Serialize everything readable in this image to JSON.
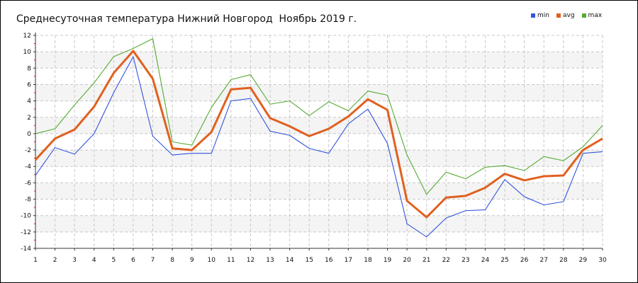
{
  "title": "Среднесуточная температура Нижний Новгород  Ноябрь 2019 г.",
  "chart_data": {
    "type": "line",
    "title": "Среднесуточная температура Нижний Новгород  Ноябрь 2019 г.",
    "xlabel": "",
    "ylabel": "",
    "x": [
      1,
      2,
      3,
      4,
      5,
      6,
      7,
      8,
      9,
      10,
      11,
      12,
      13,
      14,
      15,
      16,
      17,
      18,
      19,
      20,
      21,
      22,
      23,
      24,
      25,
      26,
      27,
      28,
      29,
      30
    ],
    "xlim": [
      1,
      30
    ],
    "ylim": [
      -14,
      12
    ],
    "yticks": [
      -14,
      -12,
      -10,
      -8,
      -6,
      -4,
      -2,
      0,
      2,
      4,
      6,
      8,
      10,
      12
    ],
    "grid": true,
    "legend_position": "top-right",
    "series": [
      {
        "name": "min",
        "color": "#3355dd",
        "values": [
          -5.1,
          -1.7,
          -2.5,
          0.0,
          5.0,
          9.4,
          -0.3,
          -2.6,
          -2.4,
          -2.4,
          4.0,
          4.3,
          0.3,
          -0.2,
          -1.8,
          -2.4,
          1.2,
          3.0,
          -1.2,
          -11.0,
          -12.6,
          -10.3,
          -9.4,
          -9.3,
          -5.6,
          -7.7,
          -8.7,
          -8.3,
          -2.4,
          -2.2
        ]
      },
      {
        "name": "avg",
        "color": "#e06020",
        "values": [
          -3.2,
          -0.6,
          0.5,
          3.3,
          7.4,
          10.1,
          6.7,
          -1.8,
          -2.0,
          0.2,
          5.4,
          5.6,
          1.9,
          0.9,
          -0.3,
          0.6,
          2.1,
          4.2,
          2.9,
          -8.2,
          -10.2,
          -7.8,
          -7.6,
          -6.6,
          -4.9,
          -5.7,
          -5.2,
          -5.1,
          -2.0,
          -0.6
        ]
      },
      {
        "name": "max",
        "color": "#55aa33",
        "values": [
          0.0,
          0.6,
          3.5,
          6.2,
          9.4,
          10.4,
          11.6,
          -1.0,
          -1.4,
          3.2,
          6.6,
          7.2,
          3.6,
          4.0,
          2.2,
          3.9,
          2.8,
          5.2,
          4.7,
          -2.6,
          -7.4,
          -4.7,
          -5.5,
          -4.1,
          -3.9,
          -4.5,
          -2.8,
          -3.3,
          -1.6,
          1.0
        ]
      }
    ]
  }
}
